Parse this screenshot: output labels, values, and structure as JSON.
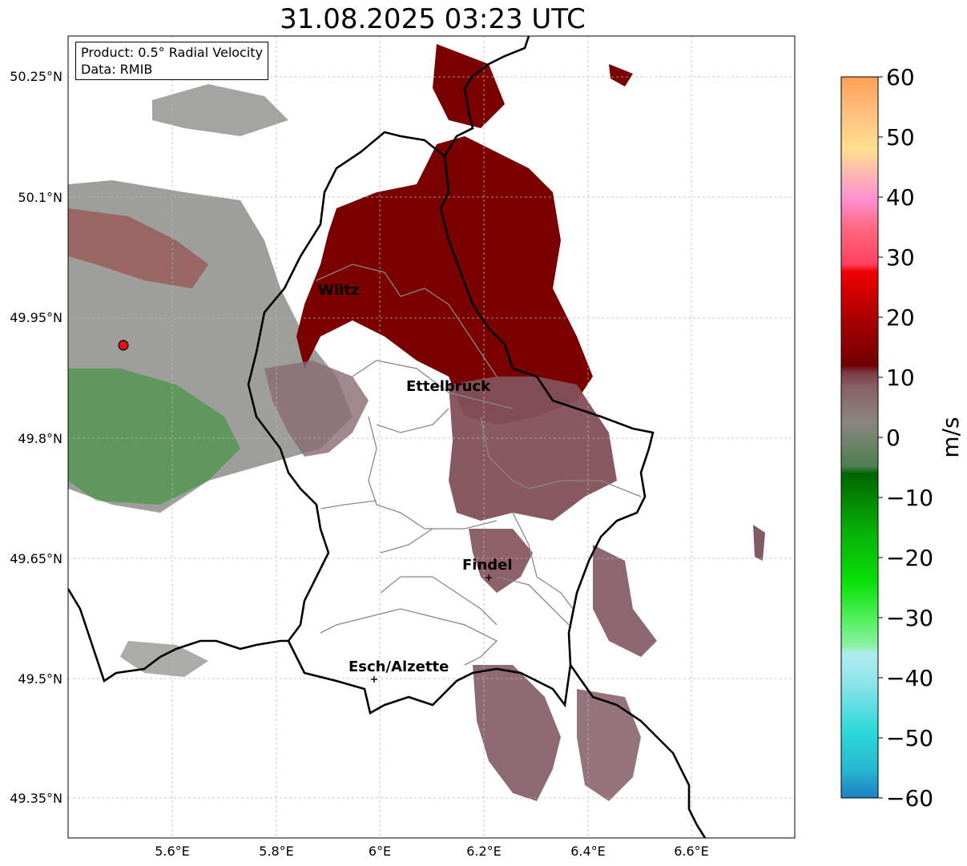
{
  "title": "31.08.2025 03:23 UTC",
  "info": {
    "product": "Product: 0.5° Radial Velocity",
    "source": "Data: RMIB"
  },
  "map": {
    "lat_ticks": [
      "50.25°N",
      "50.1°N",
      "49.95°N",
      "49.8°N",
      "49.65°N",
      "49.5°N",
      "49.35°N"
    ],
    "lon_ticks": [
      "5.6°E",
      "5.8°E",
      "6°E",
      "6.2°E",
      "6.4°E",
      "6.6°E"
    ],
    "lon_range": [
      5.4,
      6.8
    ],
    "lat_range": [
      49.3,
      50.3
    ],
    "grid": true,
    "radar_site": {
      "lon": 5.505,
      "lat": 49.914,
      "color": "#e01010"
    },
    "cities": [
      {
        "name": "Wiltz",
        "lon": 5.93,
        "lat": 49.97
      },
      {
        "name": "Ettelbruck",
        "lon": 6.1,
        "lat": 49.85
      },
      {
        "name": "Findel",
        "lon": 6.21,
        "lat": 49.63
      },
      {
        "name": "Esch/Alzette",
        "lon": 5.985,
        "lat": 49.5
      }
    ]
  },
  "colorbar": {
    "label": "m/s",
    "ticks": [
      "60",
      "50",
      "40",
      "30",
      "20",
      "10",
      "0",
      "−10",
      "−20",
      "−30",
      "−40",
      "−50",
      "−60"
    ],
    "range": [
      -60,
      60
    ],
    "colors": {
      "neg60": "#1f7fc4",
      "neg50": "#2ad8d8",
      "neg40": "#b0ecf0",
      "neg30": "#4ff05a",
      "neg20": "#08c408",
      "neg10": "#006400",
      "zero": "#8a8580",
      "pos10": "#7a0000",
      "pos20": "#d80000",
      "pos30": "#ff4060",
      "pos40": "#ff90d0",
      "pos50": "#ffe090",
      "pos60": "#ffa055"
    }
  }
}
